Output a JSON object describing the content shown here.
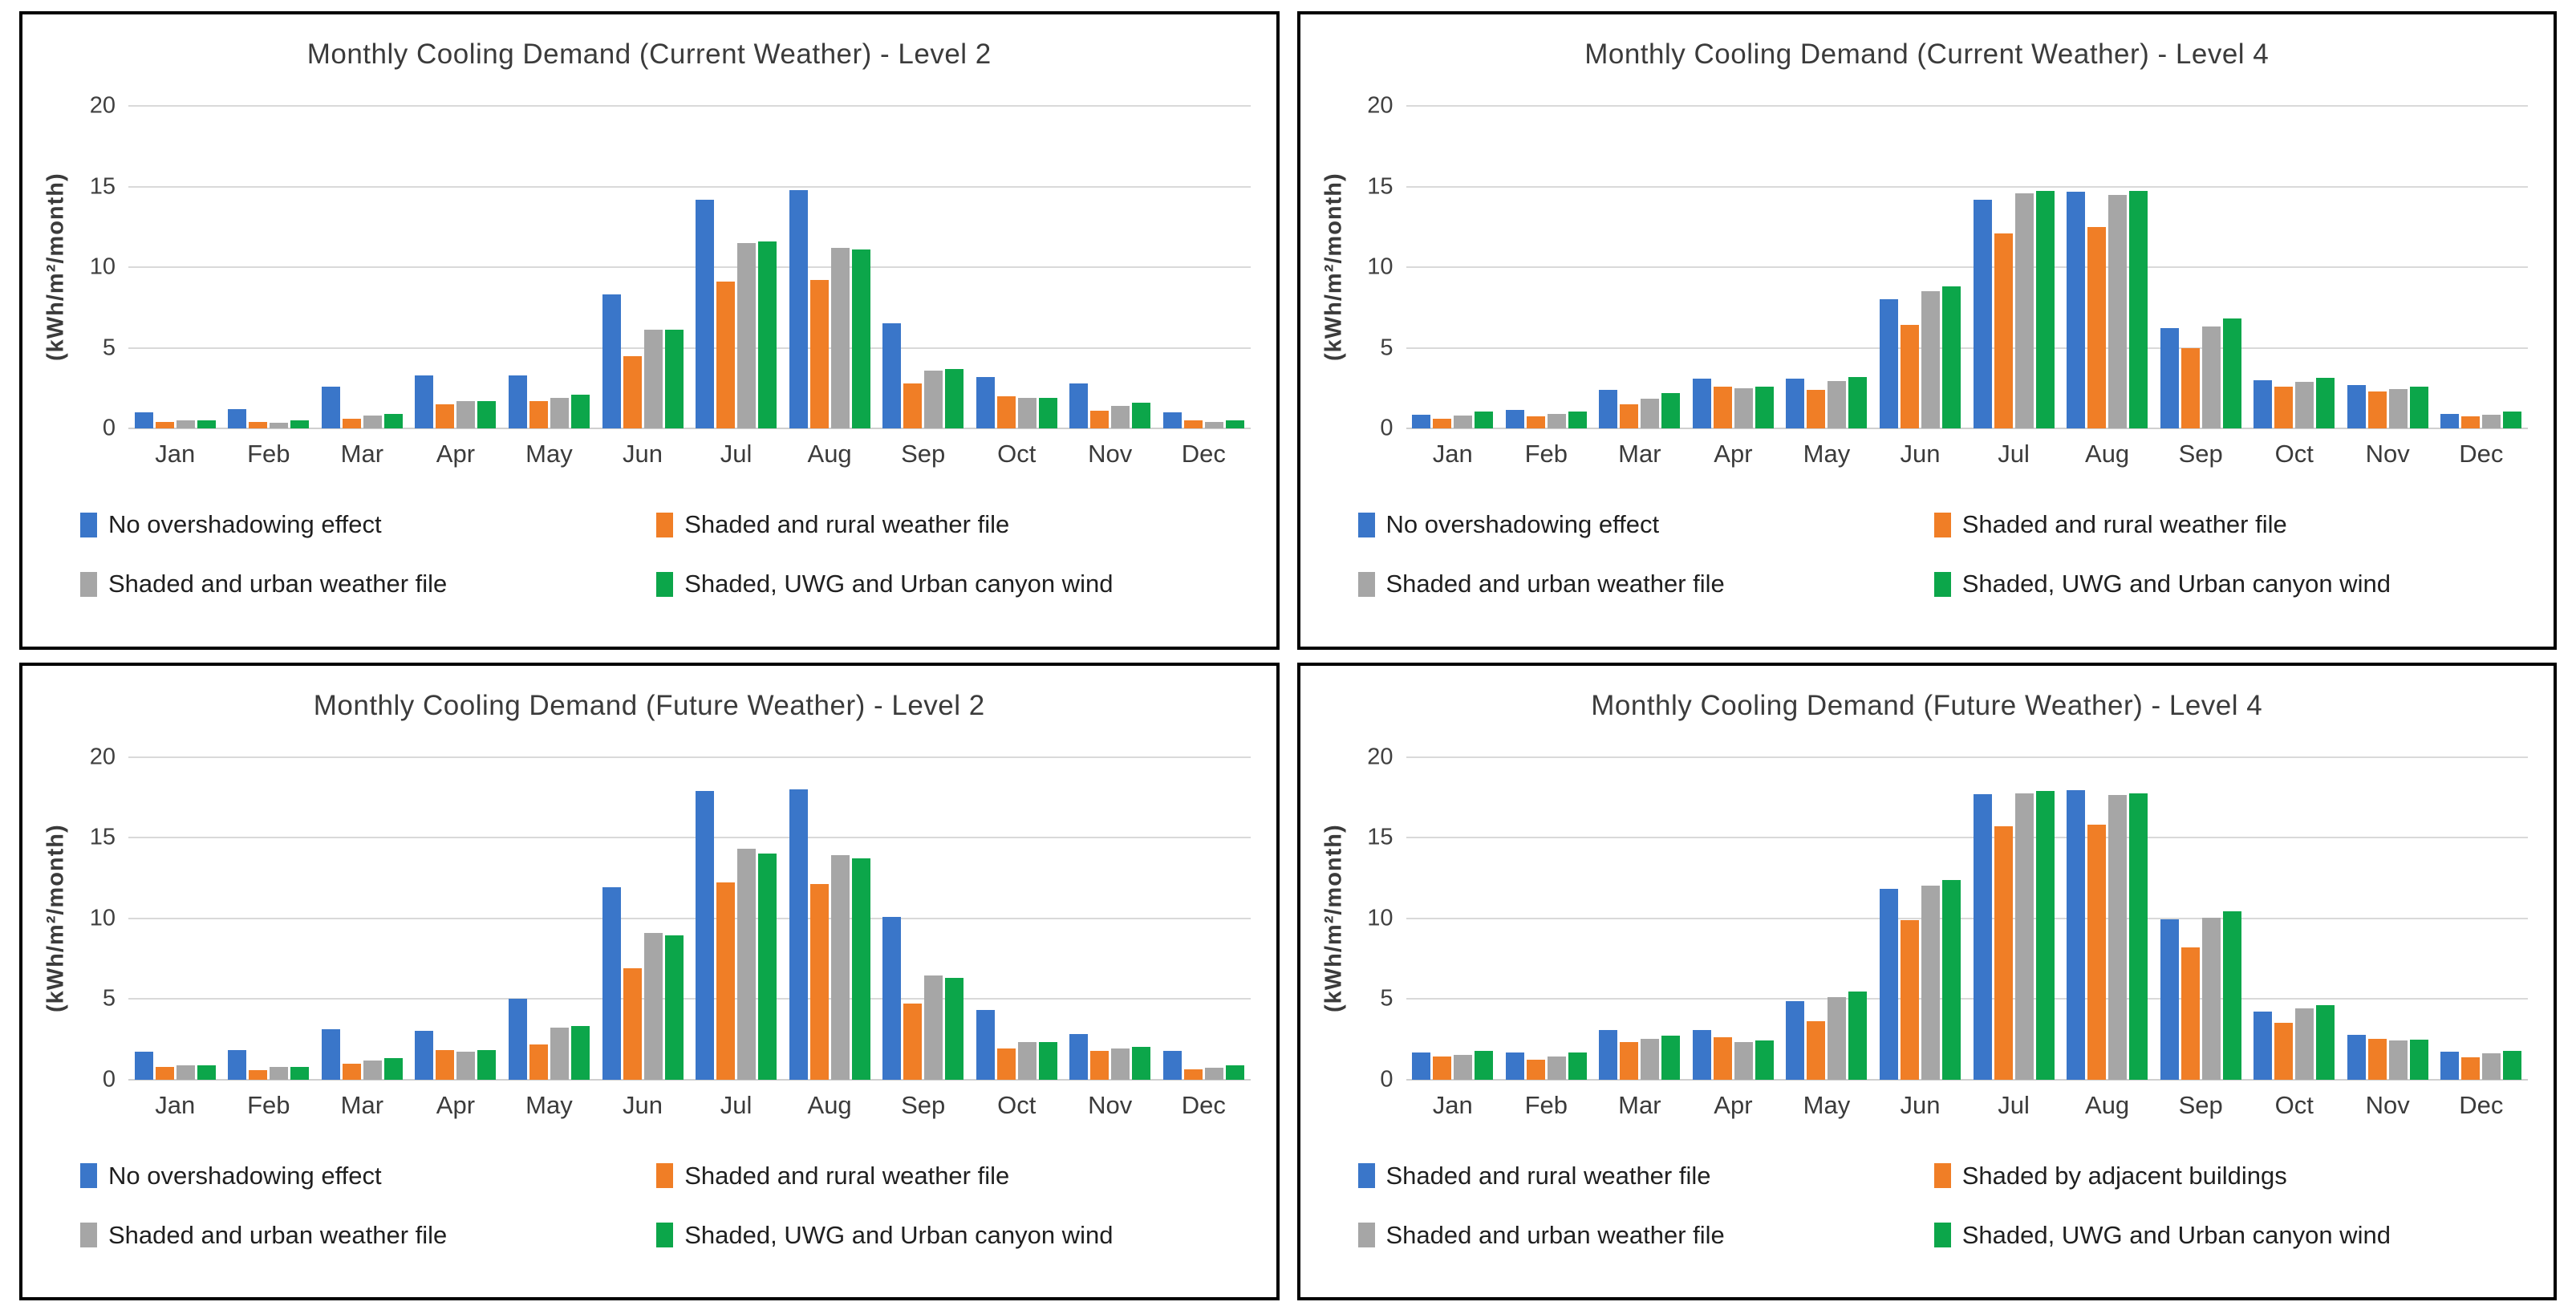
{
  "y_axis": {
    "label": "(kWh/m²/month)",
    "ticks": [
      20,
      15,
      10,
      5,
      0
    ],
    "max": 20
  },
  "colors": {
    "blue": "#3a76c9",
    "orange": "#f07e26",
    "gray": "#a6a6a6",
    "green": "#0ca64a"
  },
  "chart_data": [
    {
      "type": "bar",
      "title": "Monthly Cooling Demand (Current Weather) - Level 2",
      "ylabel": "(kWh/m²/month)",
      "ylim": [
        0,
        20
      ],
      "grid": true,
      "legend_position": "bottom",
      "categories": [
        "Jan",
        "Feb",
        "Mar",
        "Apr",
        "May",
        "Jun",
        "Jul",
        "Aug",
        "Sep",
        "Oct",
        "Nov",
        "Dec"
      ],
      "series": [
        {
          "name": "No overshadowing effect",
          "color": "#3a76c9",
          "values": [
            1.0,
            1.2,
            2.6,
            3.3,
            3.3,
            8.3,
            14.2,
            14.8,
            6.5,
            3.2,
            2.8,
            1.0
          ]
        },
        {
          "name": "Shaded and rural weather file",
          "color": "#f07e26",
          "values": [
            0.4,
            0.4,
            0.6,
            1.5,
            1.7,
            4.5,
            9.1,
            9.2,
            2.8,
            2.0,
            1.1,
            0.5
          ]
        },
        {
          "name": "Shaded and urban weather file",
          "color": "#a6a6a6",
          "values": [
            0.5,
            0.35,
            0.8,
            1.7,
            1.9,
            6.1,
            11.5,
            11.2,
            3.6,
            1.9,
            1.4,
            0.4
          ]
        },
        {
          "name": "Shaded, UWG and Urban canyon wind",
          "color": "#0ca64a",
          "values": [
            0.5,
            0.5,
            0.9,
            1.7,
            2.1,
            6.1,
            11.6,
            11.1,
            3.7,
            1.9,
            1.6,
            0.5
          ]
        }
      ]
    },
    {
      "type": "bar",
      "title": "Monthly Cooling Demand (Current Weather) - Level 4",
      "ylabel": "(kWh/m²/month)",
      "ylim": [
        0,
        20
      ],
      "grid": true,
      "legend_position": "bottom",
      "categories": [
        "Jan",
        "Feb",
        "Mar",
        "Apr",
        "May",
        "Jun",
        "Jul",
        "Aug",
        "Sep",
        "Oct",
        "Nov",
        "Dec"
      ],
      "series": [
        {
          "name": "No overshadowing effect",
          "color": "#3a76c9",
          "values": [
            0.85,
            1.15,
            2.4,
            3.1,
            3.1,
            8.0,
            14.2,
            14.7,
            6.2,
            3.0,
            2.7,
            0.9
          ]
        },
        {
          "name": "Shaded and rural weather file",
          "color": "#f07e26",
          "values": [
            0.6,
            0.75,
            1.5,
            2.6,
            2.4,
            6.4,
            12.1,
            12.5,
            5.0,
            2.6,
            2.3,
            0.75
          ]
        },
        {
          "name": "Shaded and urban weather file",
          "color": "#a6a6a6",
          "values": [
            0.8,
            0.9,
            1.85,
            2.5,
            2.95,
            8.5,
            14.6,
            14.5,
            6.3,
            2.9,
            2.45,
            0.85
          ]
        },
        {
          "name": "Shaded, UWG and Urban canyon wind",
          "color": "#0ca64a",
          "values": [
            1.05,
            1.05,
            2.2,
            2.6,
            3.2,
            8.8,
            14.75,
            14.75,
            6.8,
            3.15,
            2.6,
            1.05
          ]
        }
      ]
    },
    {
      "type": "bar",
      "title": "Monthly Cooling Demand (Future Weather) - Level 2",
      "ylabel": "(kWh/m²/month)",
      "ylim": [
        0,
        20
      ],
      "grid": true,
      "legend_position": "bottom",
      "categories": [
        "Jan",
        "Feb",
        "Mar",
        "Apr",
        "May",
        "Jun",
        "Jul",
        "Aug",
        "Sep",
        "Oct",
        "Nov",
        "Dec"
      ],
      "series": [
        {
          "name": "No overshadowing effect",
          "color": "#3a76c9",
          "values": [
            1.7,
            1.8,
            3.1,
            3.0,
            5.0,
            11.9,
            17.9,
            18.0,
            10.1,
            4.3,
            2.8,
            1.75
          ]
        },
        {
          "name": "Shaded and rural weather file",
          "color": "#f07e26",
          "values": [
            0.75,
            0.55,
            0.95,
            1.8,
            2.15,
            6.9,
            12.2,
            12.1,
            4.7,
            1.9,
            1.75,
            0.6
          ]
        },
        {
          "name": "Shaded and urban weather file",
          "color": "#a6a6a6",
          "values": [
            0.85,
            0.75,
            1.15,
            1.7,
            3.2,
            9.1,
            14.3,
            13.9,
            6.45,
            2.3,
            1.9,
            0.7
          ]
        },
        {
          "name": "Shaded, UWG and Urban canyon wind",
          "color": "#0ca64a",
          "values": [
            0.85,
            0.75,
            1.3,
            1.8,
            3.3,
            8.95,
            14.0,
            13.7,
            6.3,
            2.3,
            2.0,
            0.85
          ]
        }
      ]
    },
    {
      "type": "bar",
      "title": "Monthly Cooling Demand (Future Weather) - Level 4",
      "ylabel": "(kWh/m²/month)",
      "ylim": [
        0,
        20
      ],
      "grid": true,
      "legend_position": "bottom",
      "categories": [
        "Jan",
        "Feb",
        "Mar",
        "Apr",
        "May",
        "Jun",
        "Jul",
        "Aug",
        "Sep",
        "Oct",
        "Nov",
        "Dec"
      ],
      "series": [
        {
          "name": "Shaded and rural weather file",
          "color": "#3a76c9",
          "values": [
            1.65,
            1.65,
            3.05,
            3.05,
            4.85,
            11.8,
            17.7,
            17.95,
            9.95,
            4.2,
            2.75,
            1.7
          ]
        },
        {
          "name": "Shaded by adjacent buildings",
          "color": "#f07e26",
          "values": [
            1.4,
            1.2,
            2.3,
            2.6,
            3.6,
            9.9,
            15.7,
            15.8,
            8.2,
            3.5,
            2.5,
            1.35
          ]
        },
        {
          "name": "Shaded and urban weather file",
          "color": "#a6a6a6",
          "values": [
            1.5,
            1.4,
            2.5,
            2.3,
            5.1,
            12.0,
            17.75,
            17.65,
            10.05,
            4.4,
            2.4,
            1.6
          ]
        },
        {
          "name": "Shaded, UWG and Urban canyon wind",
          "color": "#0ca64a",
          "values": [
            1.75,
            1.65,
            2.7,
            2.4,
            5.45,
            12.35,
            17.9,
            17.75,
            10.4,
            4.6,
            2.45,
            1.75
          ]
        }
      ]
    }
  ]
}
